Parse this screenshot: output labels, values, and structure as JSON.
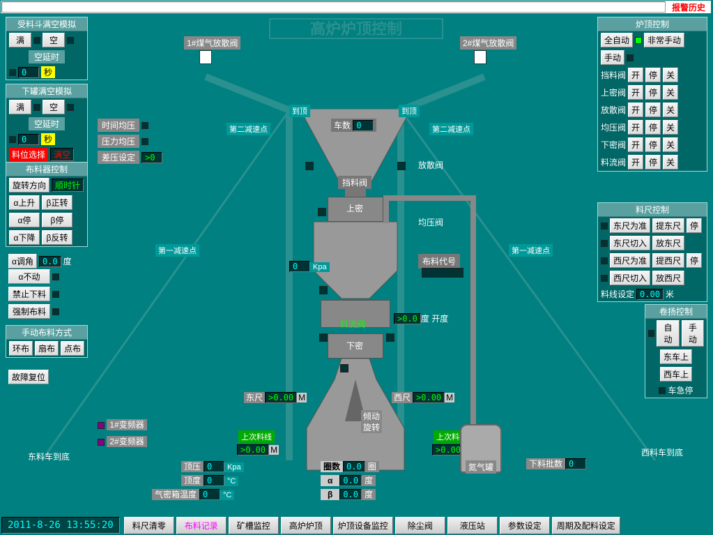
{
  "topbar": {
    "alarm_history": "报警历史"
  },
  "main_title": "高炉炉顶控制",
  "hopper_sim": {
    "title": "受料斗满空模拟",
    "full": "满",
    "empty": "空",
    "delay_label": "空延时",
    "delay_val": "0",
    "sec": "秒"
  },
  "tank_sim": {
    "title": "下罐满空模拟",
    "full": "满",
    "empty": "空",
    "delay_label": "空延时",
    "delay_val": "0",
    "sec": "秒",
    "pos_select": "料位选择",
    "pos_val": "满空"
  },
  "pressure": {
    "time_eq": "时间均压",
    "press_eq": "压力均压",
    "diff_set": "差压设定",
    "diff_val": ">0"
  },
  "dist_ctrl": {
    "title": "布料器控制",
    "rot_dir": "旋转方向",
    "cw": "顺时针",
    "a_up": "α上升",
    "b_fwd": "β正转",
    "a_stop": "α停",
    "b_stop": "β停",
    "a_down": "α下降",
    "b_rev": "β反转",
    "a_angle": "α调角",
    "a_angle_val": "0.0",
    "deg": "度",
    "a_nomove": "α不动",
    "forbid": "禁止下料",
    "force": "强制布料"
  },
  "manual_dist": {
    "title": "手动布料方式",
    "ring": "环布",
    "sector": "扇布",
    "point": "点布",
    "fault_reset": "故障复位"
  },
  "top_ctrl": {
    "title": "炉顶控制",
    "full_auto": "全自动",
    "emergency": "非常手动",
    "manual": "手动",
    "valves": [
      {
        "name": "挡料阀",
        "open": "开",
        "stop": "停",
        "close": "关"
      },
      {
        "name": "上密阀",
        "open": "开",
        "stop": "停",
        "close": "关"
      },
      {
        "name": "放散阀",
        "open": "开",
        "stop": "停",
        "close": "关"
      },
      {
        "name": "均压阀",
        "open": "开",
        "stop": "停",
        "close": "关"
      },
      {
        "name": "下密阀",
        "open": "开",
        "stop": "停",
        "close": "关"
      },
      {
        "name": "料流阀",
        "open": "开",
        "stop": "停",
        "close": "关"
      }
    ]
  },
  "ruler_ctrl": {
    "title": "料尺控制",
    "east_std": "东尺为准",
    "raise_east": "提东尺",
    "stop": "停",
    "east_cut": "东尺切入",
    "drop_east": "放东尺",
    "west_std": "西尺为准",
    "raise_west": "提西尺",
    "west_cut": "西尺切入",
    "drop_west": "放西尺",
    "line_set": "料线设定",
    "line_val": "0.00",
    "m": "米"
  },
  "hoist_ctrl": {
    "title": "卷扬控制",
    "auto": "自动",
    "manual": "手动",
    "east_up": "东车上",
    "west_up": "西车上",
    "estop": "车急停"
  },
  "diagram": {
    "valve1": "1#煤气放散阀",
    "valve2": "2#煤气放散阀",
    "to_top": "到顶",
    "decel2": "第二减速点",
    "decel1": "第一减速点",
    "car_count": "车数",
    "car_val": "0",
    "block_valve": "挡料阀",
    "discharge": "放散阀",
    "upper_seal": "上密",
    "eq_valve": "均压阀",
    "kpa": "Kpa",
    "kpa_val": "0",
    "dist_code": "布料代号",
    "flow_valve": "料流阀",
    "deg": "度",
    "opening": "开度",
    "open_val": ">0.0",
    "lower_seal": "下密",
    "east_ruler": "东尺",
    "west_ruler": "西尺",
    "ruler_val": ">0.00",
    "m": "M",
    "tilt": "倾动",
    "rotate": "旋转",
    "last_line": "上次料线",
    "last_val": ">0.00",
    "n2_tank": "氮气罐",
    "inv1": "1#变频器",
    "inv2": "2#变频器",
    "east_bottom": "东料车到底",
    "west_bottom": "西料车到底",
    "top_press": "顶压",
    "top_press_val": "0",
    "top_temp": "顶度",
    "top_temp_val": "0",
    "c": "°C",
    "seal_temp": "气密箱温度",
    "seal_temp_val": "0",
    "turns": "圈数",
    "turns_val": "0.0",
    "turn": "圈",
    "alpha": "α",
    "alpha_val": "0.0",
    "beta": "β",
    "beta_val": "0.0",
    "batch": "下料批数",
    "batch_val": "0"
  },
  "bottom": {
    "clock": "2011-8-26 13:55:20",
    "btns": [
      "料尺清零",
      "布料记录",
      "矿槽监控",
      "高炉炉顶",
      "炉顶设备监控",
      "除尘阀",
      "液压站",
      "参数设定",
      "周期及配料设定"
    ]
  },
  "colors": {
    "pink": "#ff00ff"
  }
}
